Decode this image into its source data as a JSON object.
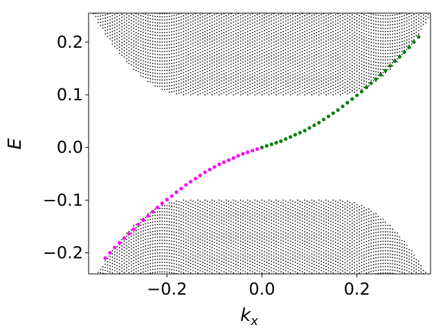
{
  "chart_data": {
    "type": "scatter",
    "xlabel": "k",
    "xlabel_subscript": "x",
    "ylabel": "E",
    "xlim": [
      -0.365,
      0.355
    ],
    "ylim": [
      -0.24,
      0.255
    ],
    "xticks": [
      -0.2,
      0.0,
      0.2
    ],
    "yticks": [
      -0.2,
      -0.1,
      0.0,
      0.1,
      0.2
    ],
    "xtick_labels": [
      "−0.2",
      "0.0",
      "0.2"
    ],
    "ytick_labels": [
      "−0.2",
      "−0.1",
      "0.0",
      "0.1",
      "0.2"
    ],
    "grid": false,
    "colors": {
      "bulk": "#000000",
      "edge_left": "#ff00ff",
      "edge_right": "#008000"
    },
    "bulk_bands": {
      "gap": 0.1,
      "band_color": "#000000",
      "k_min": -0.36,
      "k_max": 0.35,
      "k_step": 0.005,
      "flat_half_width": 0.16,
      "curvature": 4.0,
      "energy_step": 0.006
    },
    "series": [
      {
        "color": "#ff00ff",
        "x": [
          -0.33,
          -0.32,
          -0.31,
          -0.3,
          -0.29,
          -0.28,
          -0.27,
          -0.26,
          -0.25,
          -0.24,
          -0.23,
          -0.22,
          -0.21,
          -0.2,
          -0.19,
          -0.18,
          -0.17,
          -0.16,
          -0.15,
          -0.14,
          -0.13,
          -0.12,
          -0.11,
          -0.1,
          -0.09,
          -0.08,
          -0.07,
          -0.06,
          -0.05,
          -0.04,
          -0.03,
          -0.02,
          -0.01,
          0.0
        ],
        "y": [
          -0.21,
          -0.2,
          -0.19,
          -0.181,
          -0.172,
          -0.164,
          -0.155,
          -0.146,
          -0.138,
          -0.13,
          -0.122,
          -0.114,
          -0.106,
          -0.099,
          -0.092,
          -0.085,
          -0.078,
          -0.071,
          -0.065,
          -0.059,
          -0.053,
          -0.047,
          -0.042,
          -0.037,
          -0.032,
          -0.028,
          -0.024,
          -0.02,
          -0.016,
          -0.012,
          -0.009,
          -0.006,
          -0.003,
          0.0
        ]
      },
      {
        "color": "#008000",
        "x": [
          0.0,
          0.01,
          0.02,
          0.03,
          0.04,
          0.05,
          0.06,
          0.07,
          0.08,
          0.09,
          0.1,
          0.11,
          0.12,
          0.13,
          0.14,
          0.15,
          0.16,
          0.17,
          0.18,
          0.19,
          0.2,
          0.21,
          0.22,
          0.23,
          0.24,
          0.25,
          0.26,
          0.27,
          0.28,
          0.29,
          0.3,
          0.31,
          0.32,
          0.33
        ],
        "y": [
          0.0,
          0.003,
          0.006,
          0.009,
          0.012,
          0.016,
          0.02,
          0.024,
          0.028,
          0.032,
          0.037,
          0.042,
          0.047,
          0.053,
          0.059,
          0.065,
          0.071,
          0.078,
          0.085,
          0.092,
          0.099,
          0.106,
          0.114,
          0.122,
          0.13,
          0.138,
          0.146,
          0.155,
          0.164,
          0.172,
          0.181,
          0.19,
          0.2,
          0.21
        ]
      }
    ]
  }
}
